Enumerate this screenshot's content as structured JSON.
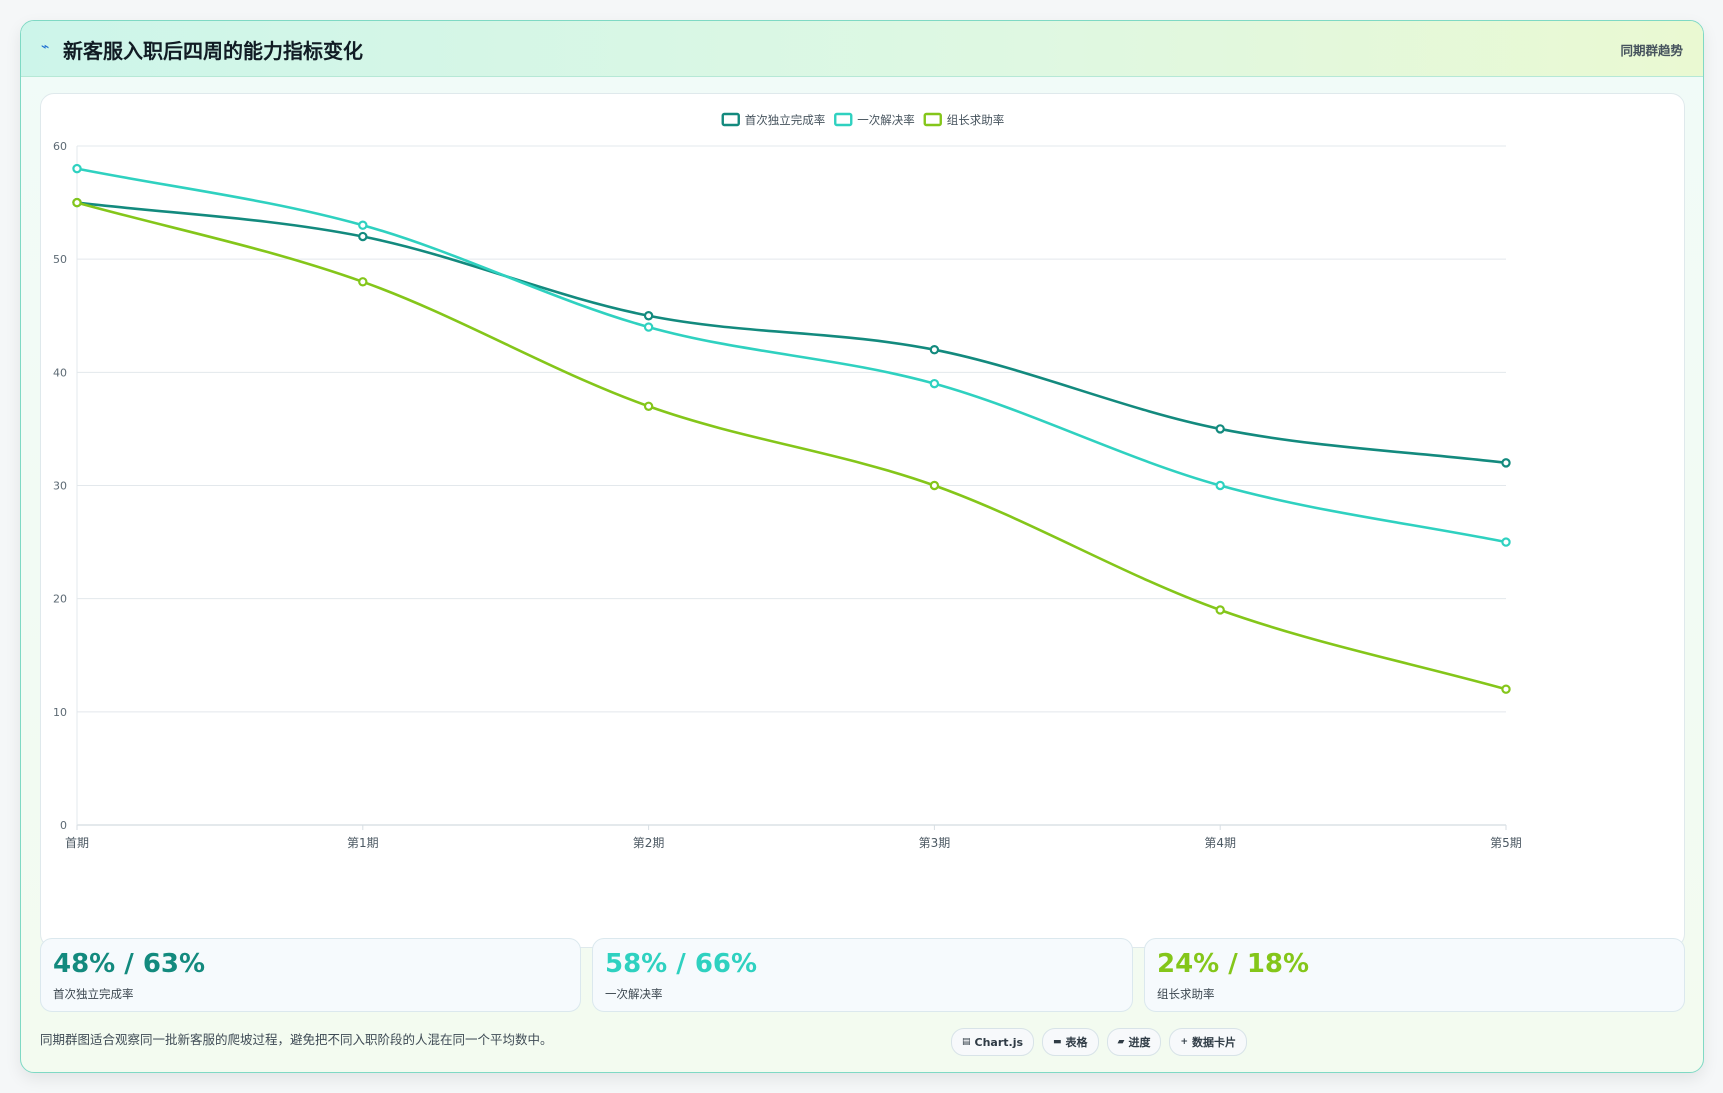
{
  "header": {
    "icon": "lightning-icon",
    "title": "新客服入职后四周的能力指标变化",
    "tag": "同期群趋势"
  },
  "chart_data": {
    "type": "line",
    "categories": [
      "首期",
      "第1期",
      "第2期",
      "第3期",
      "第4期",
      "第5期"
    ],
    "series": [
      {
        "name": "首次独立完成率",
        "color": "#138a7e",
        "values": [
          55,
          52,
          45,
          42,
          35,
          32
        ]
      },
      {
        "name": "一次解决率",
        "color": "#2fd1c0",
        "values": [
          58,
          53,
          44,
          39,
          30,
          25
        ]
      },
      {
        "name": "组长求助率",
        "color": "#84c61a",
        "values": [
          55,
          48,
          37,
          30,
          19,
          12
        ]
      }
    ],
    "ylim": [
      0,
      60
    ],
    "yticks": [
      0,
      10,
      20,
      30,
      40,
      50,
      60
    ],
    "grid": true,
    "legend": "top-center",
    "curve": "smooth"
  },
  "stats": [
    {
      "value": "48% / 63%",
      "label": "首次独立完成率",
      "color": "#138a7e"
    },
    {
      "value": "58% / 66%",
      "label": "一次解决率",
      "color": "#2fd1c0"
    },
    {
      "value": "24% / 18%",
      "label": "组长求助率",
      "color": "#84c61a"
    }
  ],
  "footer": {
    "note": "同期群图适合观察同一批新客服的爬坡过程，避免把不同入职阶段的人混在同一个平均数中。",
    "chips": [
      {
        "icon": "chart-icon",
        "glyph": "▤",
        "label": "Chart.js"
      },
      {
        "icon": "table-icon",
        "glyph": "▬",
        "label": "表格"
      },
      {
        "icon": "progress-icon",
        "glyph": "▰",
        "label": "进度"
      },
      {
        "icon": "plus-icon",
        "glyph": "+",
        "label": "数据卡片"
      }
    ]
  }
}
